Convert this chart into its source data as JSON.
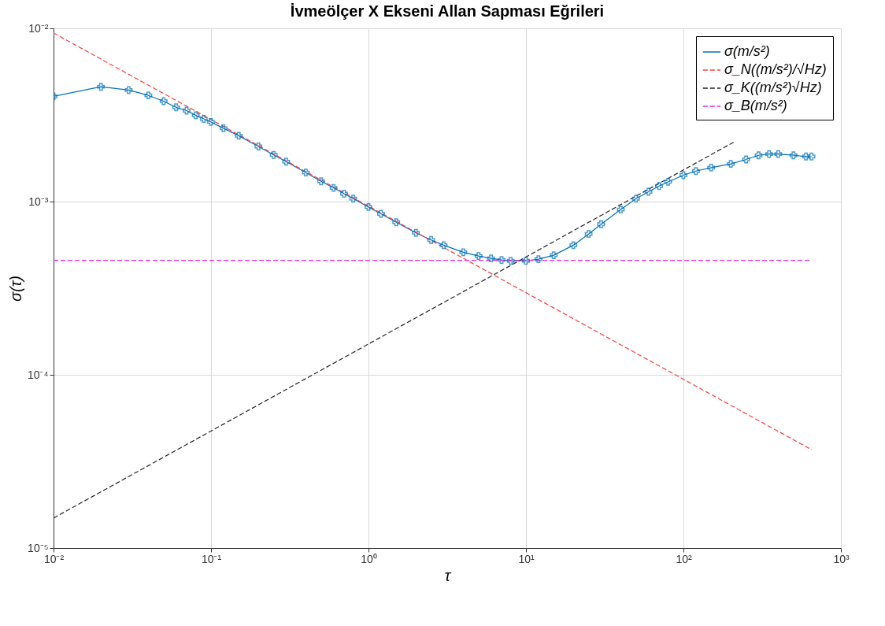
{
  "chart_data": {
    "type": "line",
    "title": "İvmeölçer X Ekseni Allan Sapması Eğrileri",
    "xlabel": "τ",
    "ylabel": "σ(τ)",
    "log": "xy",
    "grid": true,
    "legend": "top right",
    "xlim": [
      0.01,
      1000
    ],
    "ylim": [
      1e-05,
      0.01
    ],
    "xticks": [
      {
        "value": 0.01,
        "label": "10⁻²"
      },
      {
        "value": 0.1,
        "label": "10⁻¹"
      },
      {
        "value": 1,
        "label": "10⁰"
      },
      {
        "value": 10,
        "label": "10¹"
      },
      {
        "value": 100,
        "label": "10²"
      },
      {
        "value": 1000,
        "label": "10³"
      }
    ],
    "yticks": [
      {
        "value": 1e-05,
        "label": "10⁻⁵"
      },
      {
        "value": 0.0001,
        "label": "10⁻⁴"
      },
      {
        "value": 0.001,
        "label": "10⁻³"
      },
      {
        "value": 0.01,
        "label": "10⁻²"
      }
    ],
    "series": [
      {
        "name": "σ(m/s²)",
        "color": "#0072bd",
        "marker": "cross",
        "line_style": "solid",
        "x": [
          0.01,
          0.02,
          0.03,
          0.04,
          0.05,
          0.06,
          0.07,
          0.08,
          0.09,
          0.1,
          0.12,
          0.15,
          0.2,
          0.25,
          0.3,
          0.4,
          0.5,
          0.6,
          0.7,
          0.8,
          1,
          1.2,
          1.5,
          2,
          2.5,
          3,
          4,
          5,
          6,
          7,
          8,
          10,
          12,
          15,
          20,
          25,
          30,
          40,
          50,
          60,
          70,
          80,
          100,
          120,
          150,
          200,
          250,
          300,
          350,
          400,
          500,
          600,
          650
        ],
        "values": [
          0.00405,
          0.0046,
          0.0044,
          0.0041,
          0.0038,
          0.0035,
          0.00335,
          0.00315,
          0.003,
          0.00288,
          0.00265,
          0.0024,
          0.00208,
          0.00186,
          0.0017,
          0.00147,
          0.00131,
          0.0012,
          0.00111,
          0.00104,
          0.00093,
          0.00085,
          0.00076,
          0.00066,
          0.0006,
          0.00056,
          0.00051,
          0.000485,
          0.00047,
          0.00046,
          0.000455,
          0.000455,
          0.000465,
          0.00049,
          0.00056,
          0.00065,
          0.00074,
          0.0009,
          0.00104,
          0.00114,
          0.00123,
          0.0013,
          0.00142,
          0.0015,
          0.00157,
          0.00165,
          0.00175,
          0.00185,
          0.00188,
          0.00188,
          0.00185,
          0.00182,
          0.00182
        ]
      },
      {
        "name": "σ_N((m/s²)/√Hz)",
        "color": "#ff3b3b",
        "line_style": "dashed",
        "x": [
          0.01,
          650
        ],
        "values": [
          0.0094,
          3.7e-05
        ]
      },
      {
        "name": "σ_K((m/s²)√Hz)",
        "color": "#222222",
        "line_style": "dashed",
        "x": [
          0.01,
          208
        ],
        "values": [
          1.49e-05,
          0.0022
        ]
      },
      {
        "name": "σ_B(m/s²)",
        "color": "#ee22ee",
        "line_style": "dashed",
        "x": [
          0.01,
          650
        ],
        "values": [
          0.000458,
          0.000458
        ]
      }
    ]
  }
}
